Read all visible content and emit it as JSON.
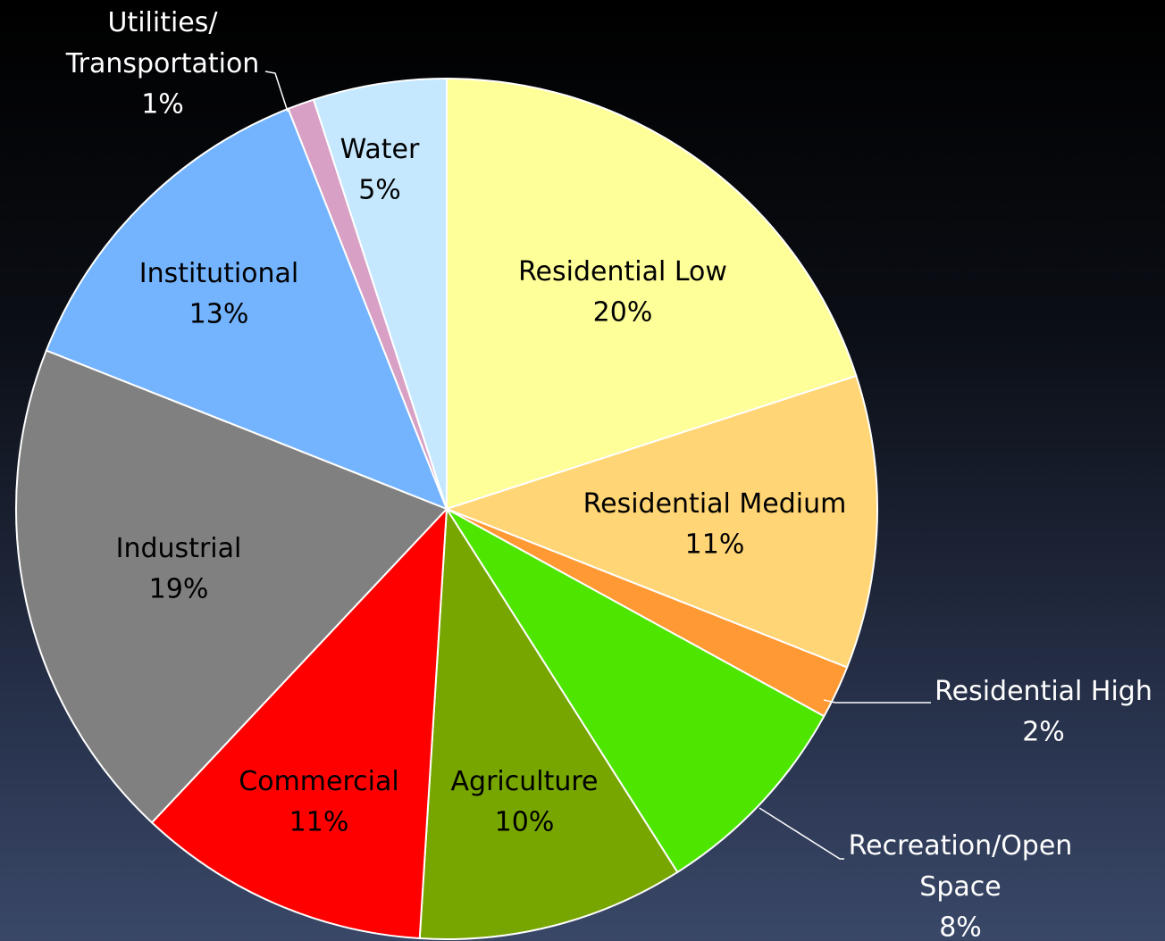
{
  "chart_data": {
    "type": "pie",
    "categories": [
      "Residential Low",
      "Residential Medium",
      "Residential High",
      "Recreation/Open\nSpace",
      "Agriculture",
      "Commercial",
      "Industrial",
      "Institutional",
      "Utilities/\nTransportation",
      "Water"
    ],
    "values": [
      20,
      11,
      2,
      8,
      10,
      11,
      19,
      13,
      1,
      5
    ],
    "value_labels": [
      "20%",
      "11%",
      "2%",
      "8%",
      "10%",
      "11%",
      "19%",
      "13%",
      "1%",
      "5%"
    ],
    "colors": [
      "#ffff99",
      "#ffd575",
      "#ff9933",
      "#4ee600",
      "#77a600",
      "#ff0000",
      "#808080",
      "#74b4ff",
      "#d8a0c4",
      "#c5e8ff"
    ]
  }
}
